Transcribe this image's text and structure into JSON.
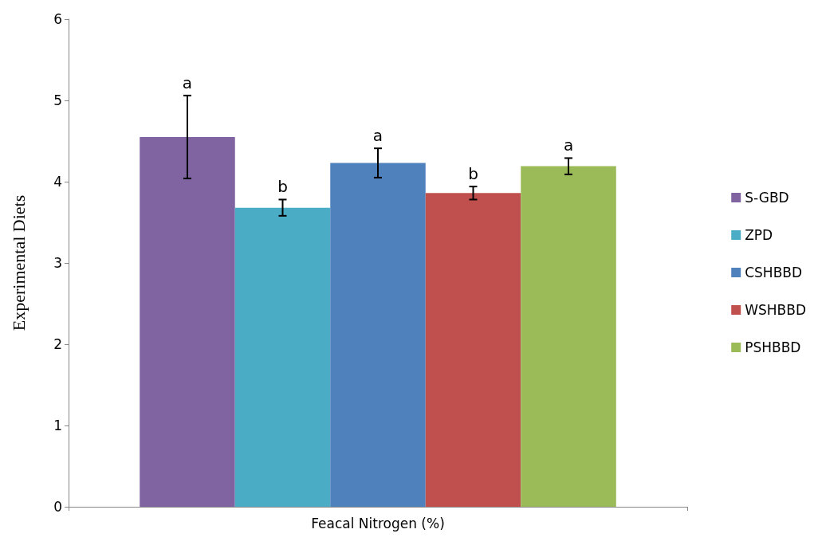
{
  "chart_data": {
    "type": "bar",
    "ylabel": "Experimental Diets",
    "categories": [
      "Feacal Nitrogen (%)"
    ],
    "series": [
      {
        "name": "S-GBD",
        "color": "#8064a2",
        "values": [
          4.55
        ],
        "errors": [
          0.51
        ],
        "value_labels": [
          "a"
        ]
      },
      {
        "name": "ZPD",
        "color": "#4bacc6",
        "values": [
          3.68
        ],
        "errors": [
          0.1
        ],
        "value_labels": [
          "b"
        ]
      },
      {
        "name": "CSHBBD",
        "color": "#4f81bd",
        "values": [
          4.23
        ],
        "errors": [
          0.18
        ],
        "value_labels": [
          "a"
        ]
      },
      {
        "name": "WSHBBD",
        "color": "#c0504d",
        "values": [
          3.86
        ],
        "errors": [
          0.08
        ],
        "value_labels": [
          "b"
        ]
      },
      {
        "name": "PSHBBD",
        "color": "#9bbb59",
        "values": [
          4.19
        ],
        "errors": [
          0.1
        ],
        "value_labels": [
          "a"
        ]
      }
    ],
    "ylim": [
      0,
      6
    ],
    "yticks": [
      0,
      1,
      2,
      3,
      4,
      5,
      6
    ],
    "grid": false,
    "legend": "right"
  }
}
